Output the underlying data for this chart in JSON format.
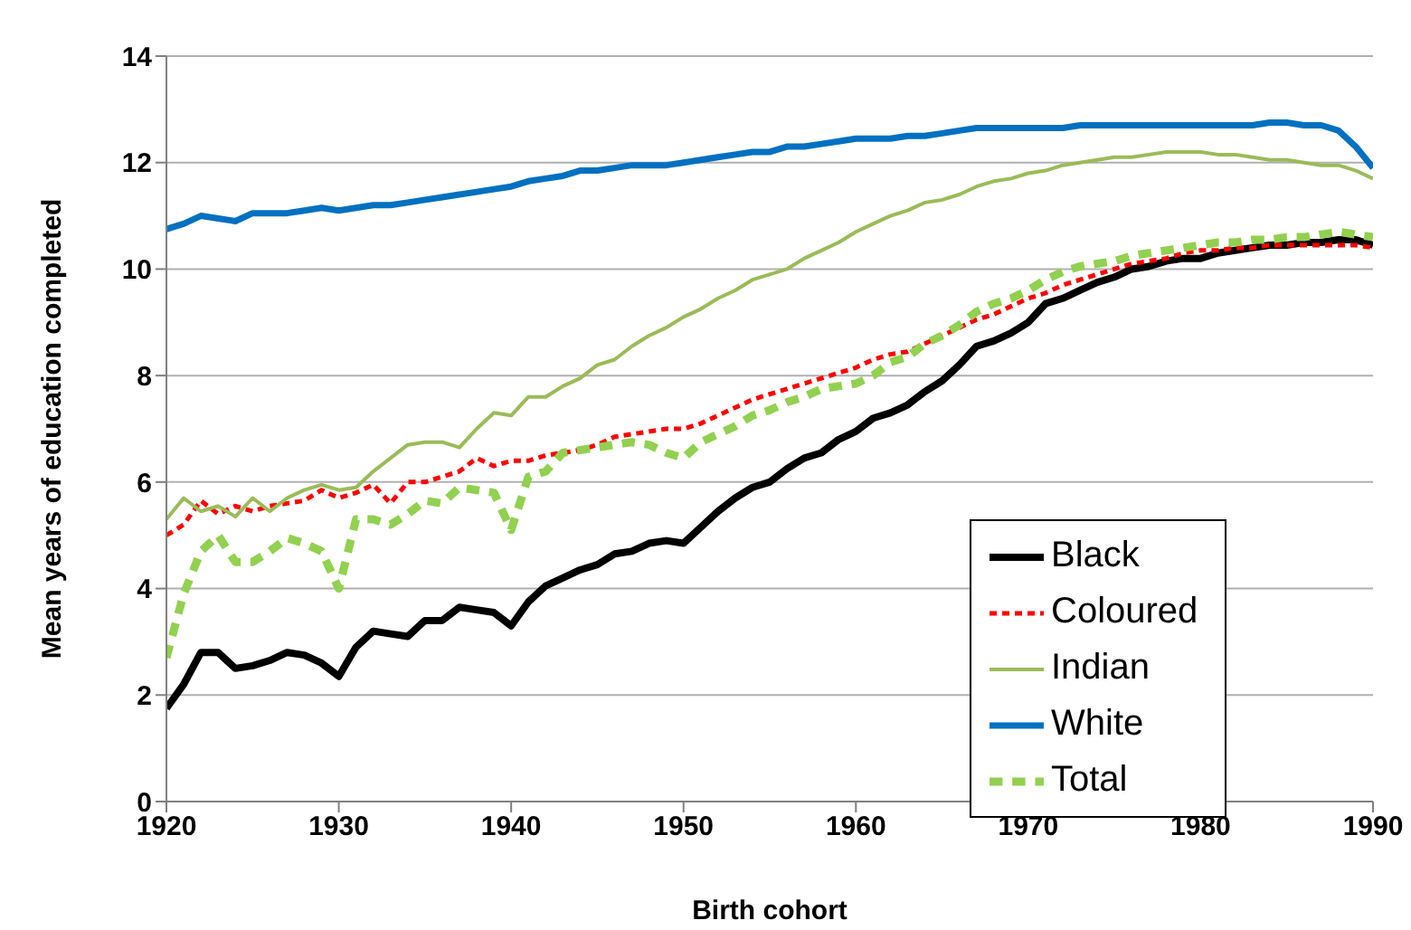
{
  "chart_data": {
    "type": "line",
    "xlabel": "Birth cohort",
    "ylabel": "Mean years of education completed",
    "x": [
      1920,
      1921,
      1922,
      1923,
      1924,
      1925,
      1926,
      1927,
      1928,
      1929,
      1930,
      1931,
      1932,
      1933,
      1934,
      1935,
      1936,
      1937,
      1938,
      1939,
      1940,
      1941,
      1942,
      1943,
      1944,
      1945,
      1946,
      1947,
      1948,
      1949,
      1950,
      1951,
      1952,
      1953,
      1954,
      1955,
      1956,
      1957,
      1958,
      1959,
      1960,
      1961,
      1962,
      1963,
      1964,
      1965,
      1966,
      1967,
      1968,
      1969,
      1970,
      1971,
      1972,
      1973,
      1974,
      1975,
      1976,
      1977,
      1978,
      1979,
      1980,
      1981,
      1982,
      1983,
      1984,
      1985,
      1986,
      1987,
      1988,
      1989,
      1990
    ],
    "series": [
      {
        "name": "Black",
        "color": "#000000",
        "line_style": "solid",
        "values": [
          1.75,
          2.2,
          2.8,
          2.8,
          2.5,
          2.55,
          2.65,
          2.8,
          2.75,
          2.6,
          2.35,
          2.9,
          3.2,
          3.15,
          3.1,
          3.4,
          3.4,
          3.65,
          3.6,
          3.55,
          3.3,
          3.75,
          4.05,
          4.2,
          4.35,
          4.45,
          4.65,
          4.7,
          4.85,
          4.9,
          4.85,
          5.15,
          5.45,
          5.7,
          5.9,
          6.0,
          6.25,
          6.45,
          6.55,
          6.8,
          6.95,
          7.2,
          7.3,
          7.45,
          7.7,
          7.9,
          8.2,
          8.55,
          8.65,
          8.8,
          9.0,
          9.35,
          9.45,
          9.6,
          9.75,
          9.85,
          10.0,
          10.05,
          10.15,
          10.2,
          10.2,
          10.3,
          10.35,
          10.4,
          10.45,
          10.45,
          10.5,
          10.5,
          10.55,
          10.55,
          10.45
        ]
      },
      {
        "name": "Coloured",
        "color": "#ff0000",
        "line_style": "dashed",
        "values": [
          5.0,
          5.2,
          5.65,
          5.4,
          5.55,
          5.45,
          5.55,
          5.6,
          5.65,
          5.85,
          5.7,
          5.8,
          5.95,
          5.6,
          6.0,
          6.0,
          6.1,
          6.2,
          6.45,
          6.3,
          6.4,
          6.4,
          6.5,
          6.55,
          6.6,
          6.7,
          6.85,
          6.9,
          6.95,
          7.0,
          7.0,
          7.1,
          7.25,
          7.4,
          7.55,
          7.65,
          7.75,
          7.85,
          7.95,
          8.05,
          8.15,
          8.3,
          8.4,
          8.45,
          8.6,
          8.75,
          8.9,
          9.05,
          9.15,
          9.3,
          9.45,
          9.55,
          9.7,
          9.8,
          9.9,
          10.0,
          10.1,
          10.15,
          10.2,
          10.3,
          10.35,
          10.35,
          10.4,
          10.4,
          10.45,
          10.45,
          10.45,
          10.45,
          10.45,
          10.45,
          10.4
        ]
      },
      {
        "name": "Indian",
        "color": "#9bbb59",
        "line_style": "solid",
        "values": [
          5.3,
          5.7,
          5.45,
          5.55,
          5.35,
          5.7,
          5.45,
          5.7,
          5.85,
          5.95,
          5.85,
          5.9,
          6.2,
          6.45,
          6.7,
          6.75,
          6.75,
          6.65,
          7.0,
          7.3,
          7.25,
          7.6,
          7.6,
          7.8,
          7.95,
          8.2,
          8.3,
          8.55,
          8.75,
          8.9,
          9.1,
          9.25,
          9.45,
          9.6,
          9.8,
          9.9,
          10.0,
          10.2,
          10.35,
          10.5,
          10.7,
          10.85,
          11.0,
          11.1,
          11.25,
          11.3,
          11.4,
          11.55,
          11.65,
          11.7,
          11.8,
          11.85,
          11.95,
          12.0,
          12.05,
          12.1,
          12.1,
          12.15,
          12.2,
          12.2,
          12.2,
          12.15,
          12.15,
          12.1,
          12.05,
          12.05,
          12.0,
          11.95,
          11.95,
          11.85,
          11.7
        ]
      },
      {
        "name": "White",
        "color": "#0070c0",
        "line_style": "solid",
        "values": [
          10.75,
          10.85,
          11.0,
          10.95,
          10.9,
          11.05,
          11.05,
          11.05,
          11.1,
          11.15,
          11.1,
          11.15,
          11.2,
          11.2,
          11.25,
          11.3,
          11.35,
          11.4,
          11.45,
          11.5,
          11.55,
          11.65,
          11.7,
          11.75,
          11.85,
          11.85,
          11.9,
          11.95,
          11.95,
          11.95,
          12.0,
          12.05,
          12.1,
          12.15,
          12.2,
          12.2,
          12.3,
          12.3,
          12.35,
          12.4,
          12.45,
          12.45,
          12.45,
          12.5,
          12.5,
          12.55,
          12.6,
          12.65,
          12.65,
          12.65,
          12.65,
          12.65,
          12.65,
          12.7,
          12.7,
          12.7,
          12.7,
          12.7,
          12.7,
          12.7,
          12.7,
          12.7,
          12.7,
          12.7,
          12.75,
          12.75,
          12.7,
          12.7,
          12.6,
          12.3,
          11.9
        ]
      },
      {
        "name": "Total",
        "color": "#92d050",
        "line_style": "dashed",
        "values": [
          2.7,
          3.9,
          4.7,
          5.0,
          4.5,
          4.5,
          4.7,
          4.95,
          4.85,
          4.7,
          4.0,
          5.3,
          5.3,
          5.2,
          5.4,
          5.65,
          5.6,
          5.9,
          5.85,
          5.8,
          5.1,
          6.1,
          6.2,
          6.55,
          6.6,
          6.65,
          6.7,
          6.75,
          6.7,
          6.55,
          6.45,
          6.75,
          6.9,
          7.05,
          7.25,
          7.35,
          7.5,
          7.6,
          7.75,
          7.8,
          7.85,
          8.0,
          8.25,
          8.35,
          8.6,
          8.75,
          8.95,
          9.2,
          9.35,
          9.45,
          9.6,
          9.8,
          9.95,
          10.05,
          10.1,
          10.15,
          10.25,
          10.3,
          10.35,
          10.4,
          10.45,
          10.5,
          10.5,
          10.55,
          10.55,
          10.6,
          10.6,
          10.65,
          10.7,
          10.65,
          10.6
        ]
      }
    ],
    "xlim": [
      1920,
      1990
    ],
    "xticks": [
      1920,
      1930,
      1940,
      1950,
      1960,
      1970,
      1980,
      1990
    ],
    "ylim": [
      0,
      14
    ],
    "yticks": [
      0,
      2,
      4,
      6,
      8,
      10,
      12,
      14
    ],
    "grid": "y",
    "legend": "bottom right",
    "marker": "none"
  }
}
